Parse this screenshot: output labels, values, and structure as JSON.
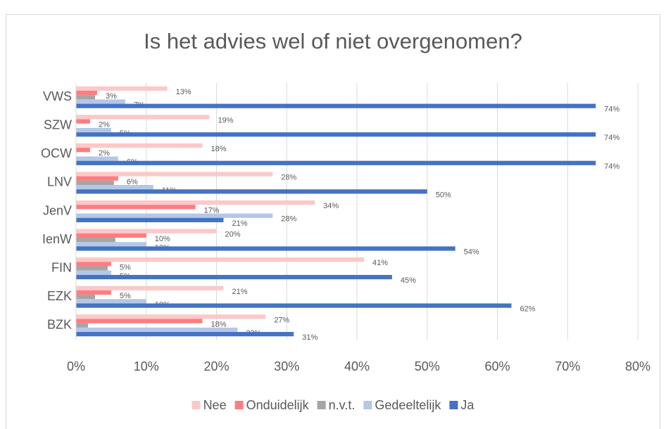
{
  "chart_data": {
    "type": "hbar",
    "title": "Is het advies wel of niet overgenomen?",
    "categories": [
      "VWS",
      "SZW",
      "OCW",
      "LNV",
      "JenV",
      "IenW",
      "FIN",
      "EZK",
      "BZK"
    ],
    "xlim": [
      0,
      80
    ],
    "xticks": [
      {
        "value": 0,
        "label": "0%"
      },
      {
        "value": 10,
        "label": "10%"
      },
      {
        "value": 20,
        "label": "20%"
      },
      {
        "value": 30,
        "label": "30%"
      },
      {
        "value": 40,
        "label": "40%"
      },
      {
        "value": 50,
        "label": "50%"
      },
      {
        "value": 60,
        "label": "60%"
      },
      {
        "value": 70,
        "label": "70%"
      },
      {
        "value": 80,
        "label": "80%"
      }
    ],
    "grid": true,
    "legend": "bottom",
    "series": [
      {
        "name": "Nee",
        "color": "#fcc8c8",
        "values": [
          13,
          19,
          18,
          28,
          34,
          20,
          41,
          21,
          27
        ],
        "value_labels": [
          "13%",
          "19%",
          "18%",
          "28%",
          "34%",
          "20%",
          "41%",
          "21%",
          "27%"
        ]
      },
      {
        "name": "Onduidelijk",
        "color": "#ff7c80",
        "values": [
          3,
          2,
          2,
          6,
          17,
          10,
          5,
          5,
          18
        ],
        "value_labels": [
          "3%",
          "2%",
          "2%",
          "6%",
          "17%",
          "10%",
          "5%",
          "5%",
          "18%"
        ]
      },
      {
        "name": "n.v.t.",
        "color": "#a5a5a5",
        "values": [
          2.7,
          0,
          0,
          5.4,
          0,
          5.6,
          4.5,
          2.7,
          1.7
        ]
      },
      {
        "name": "Gedeeltelijk",
        "color": "#b4c7e7",
        "values": [
          7,
          5,
          6,
          11,
          28,
          10,
          5,
          10,
          23
        ],
        "value_labels": [
          "7%",
          "5%",
          "6%",
          "11%",
          "28%",
          "10%",
          "5%",
          "10%",
          "23%"
        ]
      },
      {
        "name": "Ja",
        "color": "#4472c4",
        "values": [
          74,
          74,
          74,
          50,
          21,
          54,
          45,
          62,
          31
        ],
        "value_labels": [
          "74%",
          "74%",
          "74%",
          "50%",
          "21%",
          "54%",
          "45%",
          "62%",
          "31%"
        ]
      }
    ]
  }
}
